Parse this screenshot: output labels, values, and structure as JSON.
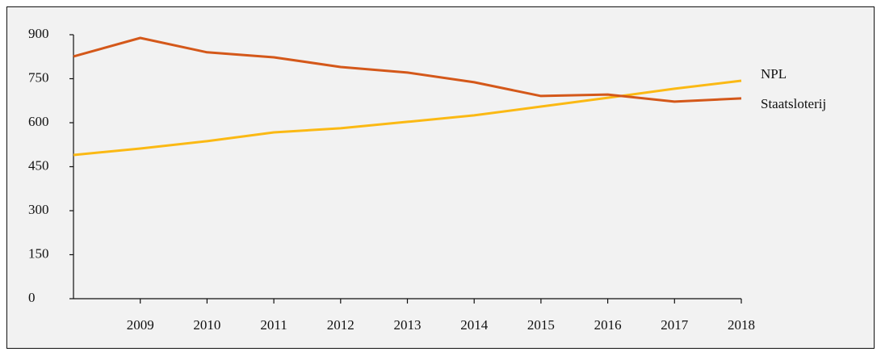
{
  "chart_data": {
    "type": "line",
    "x": [
      2008,
      2009,
      2010,
      2011,
      2012,
      2013,
      2014,
      2015,
      2016,
      2017,
      2018
    ],
    "xlim": [
      2008,
      2018
    ],
    "xticks": [
      2009,
      2010,
      2011,
      2012,
      2013,
      2014,
      2015,
      2016,
      2017,
      2018
    ],
    "ylim": [
      0,
      900
    ],
    "yticks": [
      0,
      150,
      300,
      450,
      600,
      750,
      900
    ],
    "grid": false,
    "series": [
      {
        "name": "NPL",
        "color": "#fbb914",
        "values": [
          490,
          512,
          537,
          567,
          581,
          603,
          625,
          655,
          685,
          716,
          743
        ]
      },
      {
        "name": "Staatsloterij",
        "color": "#d4581a",
        "values": [
          826,
          889,
          840,
          823,
          790,
          771,
          738,
          691,
          696,
          672,
          683
        ]
      }
    ]
  }
}
